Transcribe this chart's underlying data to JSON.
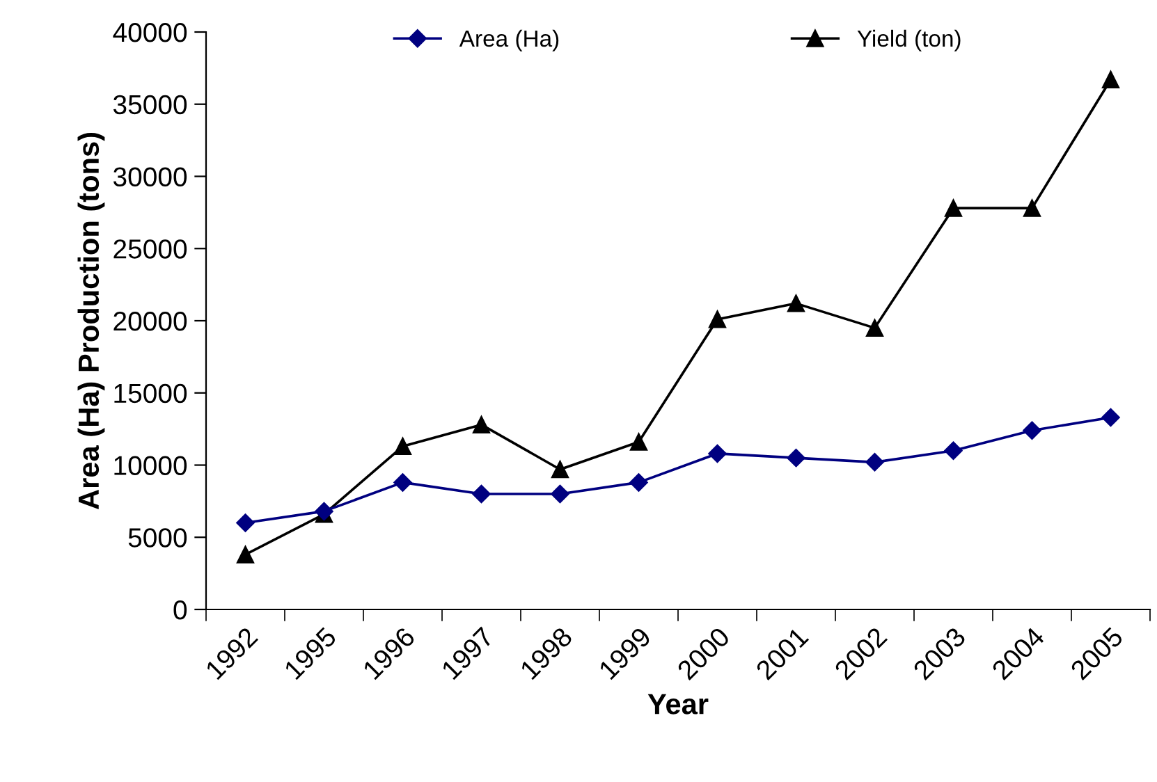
{
  "chart_data": {
    "type": "line",
    "xlabel": "Year",
    "ylabel": "Area (Ha) Production (tons)",
    "categories": [
      "1992",
      "1995",
      "1996",
      "1997",
      "1998",
      "1999",
      "2000",
      "2001",
      "2002",
      "2003",
      "2004",
      "2005"
    ],
    "series": [
      {
        "name": "Area (Ha)",
        "color": "#000080",
        "marker": "diamond",
        "values": [
          6000,
          6800,
          8800,
          8000,
          8000,
          8800,
          10800,
          10500,
          10200,
          11000,
          12400,
          13300
        ]
      },
      {
        "name": "Yield (ton)",
        "color": "#000000",
        "marker": "triangle",
        "values": [
          3800,
          6600,
          11300,
          12800,
          9700,
          11600,
          20100,
          21200,
          19500,
          27800,
          27800,
          36700
        ]
      }
    ],
    "ylim": [
      0,
      40000
    ],
    "yticks": [
      0,
      5000,
      10000,
      15000,
      20000,
      25000,
      30000,
      35000,
      40000
    ],
    "grid": false,
    "legend": "top",
    "line_style": "solid"
  }
}
